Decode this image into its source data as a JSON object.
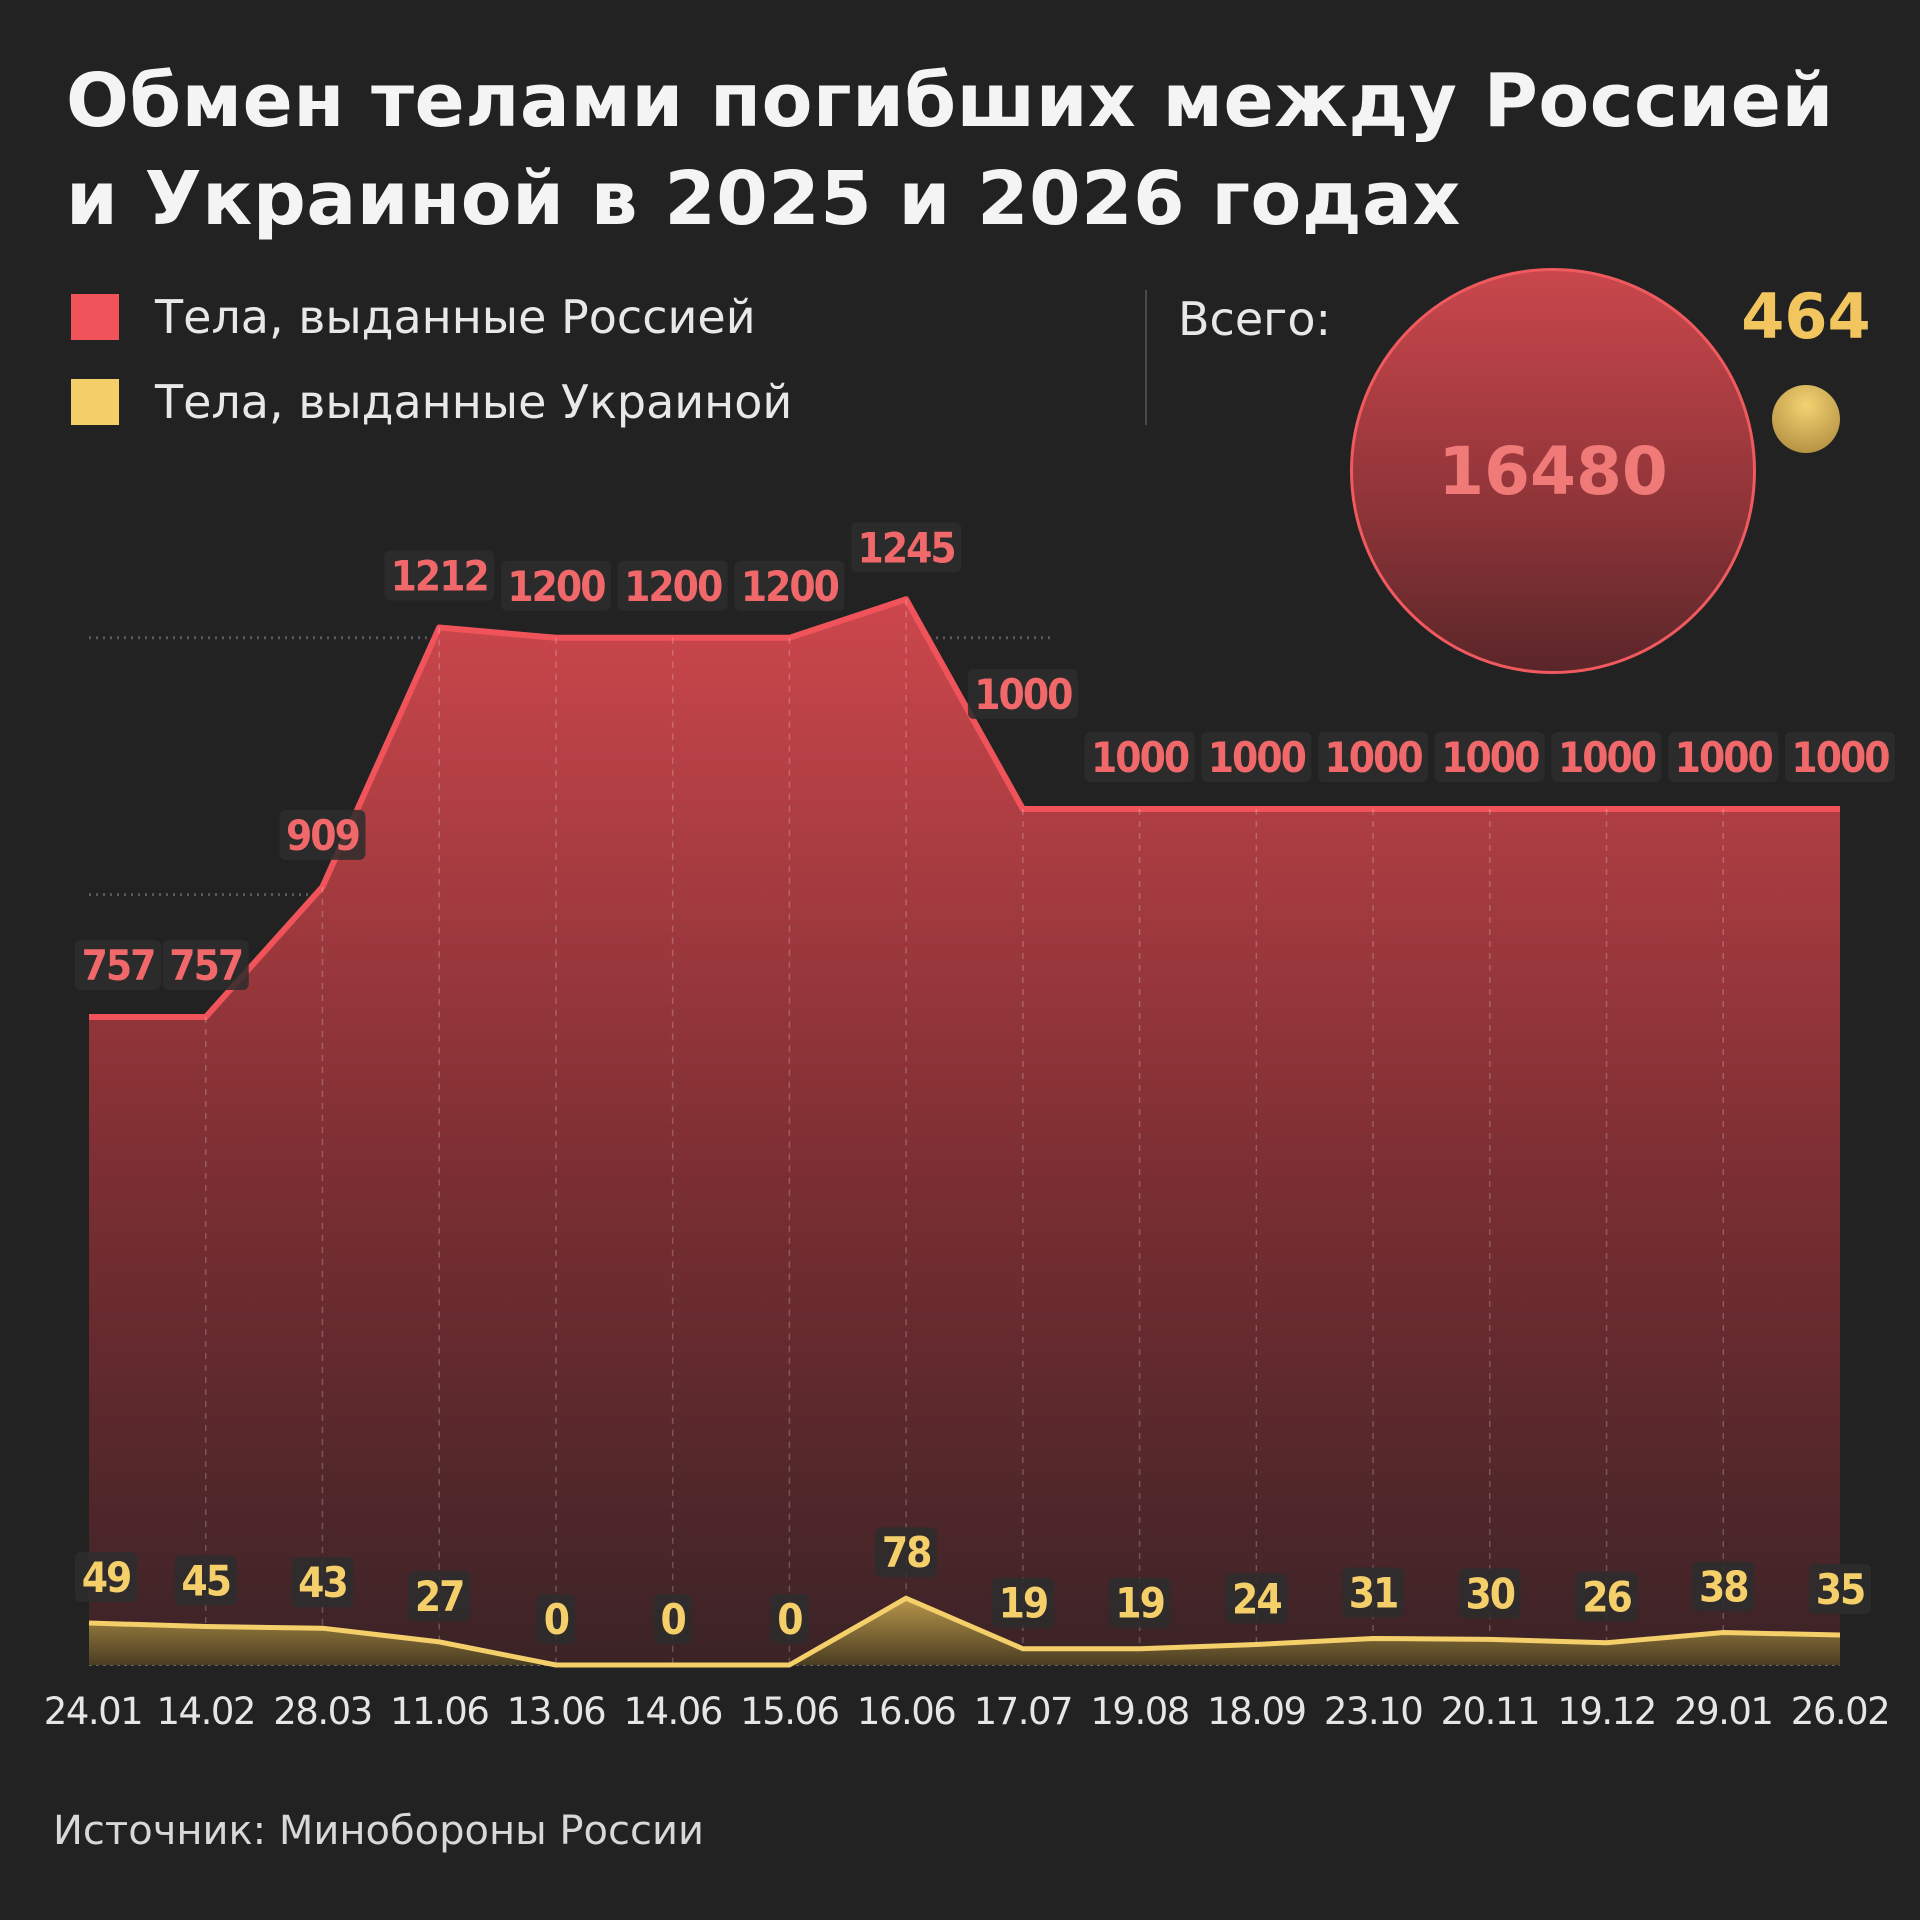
{
  "title": "Обмен телами погибших между Россией и Украиной в 2025 и 2026 годах",
  "legend": [
    {
      "label": "Тела, выданные Россией",
      "color": "#f0545a"
    },
    {
      "label": "Тела, выданные Украиной",
      "color": "#f5d06a"
    }
  ],
  "totals": {
    "label": "Всего:",
    "russia": "16480",
    "ukraine": "464"
  },
  "source": "Источник: Минобороны России",
  "chart_data": {
    "type": "area",
    "categories": [
      "24.01",
      "14.02",
      "28.03",
      "11.06",
      "13.06",
      "14.06",
      "15.06",
      "16.06",
      "17.07",
      "19.08",
      "18.09",
      "23.10",
      "20.11",
      "19.12",
      "29.01",
      "26.02"
    ],
    "series": [
      {
        "name": "Тела, выданные Россией",
        "color": "#f0545a",
        "values": [
          757,
          757,
          909,
          1212,
          1200,
          1200,
          1200,
          1245,
          1000,
          1000,
          1000,
          1000,
          1000,
          1000,
          1000,
          1000
        ]
      },
      {
        "name": "Тела, выданные Украиной",
        "color": "#f5d06a",
        "values": [
          49,
          45,
          43,
          27,
          0,
          0,
          0,
          78,
          19,
          19,
          24,
          31,
          30,
          26,
          38,
          35
        ]
      }
    ],
    "ylim": [
      0,
      1300
    ],
    "grid": true,
    "legend_position": "top-left"
  }
}
